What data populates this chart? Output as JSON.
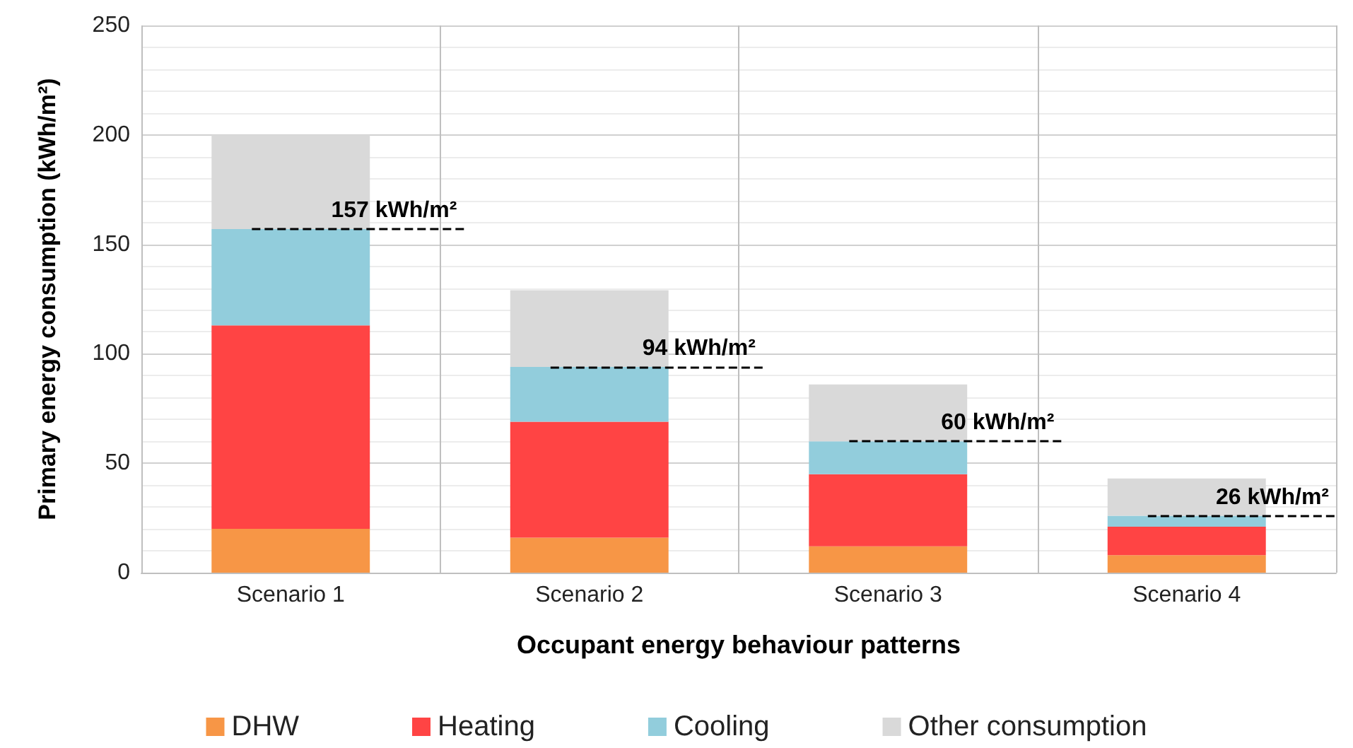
{
  "chart_data": {
    "type": "bar",
    "stacked": true,
    "xlabel": "Occupant energy behaviour patterns",
    "ylabel": "Primary energy consumption (kWh/m²)",
    "categories": [
      "Scenario 1",
      "Scenario 2",
      "Scenario 3",
      "Scenario 4"
    ],
    "series": [
      {
        "name": "DHW",
        "color": "#f79646",
        "values": [
          20,
          16,
          12,
          8
        ]
      },
      {
        "name": "Heating",
        "color": "#ff4444",
        "values": [
          93,
          53,
          33,
          13
        ]
      },
      {
        "name": "Cooling",
        "color": "#92cddc",
        "values": [
          44,
          25,
          15,
          5
        ]
      },
      {
        "name": "Other consumption",
        "color": "#d9d9d9",
        "values": [
          43,
          35,
          26,
          17
        ]
      }
    ],
    "ylim": [
      0,
      250
    ],
    "yticks": [
      0,
      50,
      100,
      150,
      200,
      250
    ],
    "grid": true,
    "legend": "bottom",
    "ref_lines": [
      {
        "axis": "y",
        "value": 157,
        "label": "157 kWh/m²",
        "line_style": "dashed",
        "color": "#000000"
      },
      {
        "axis": "y",
        "value": 94,
        "label": "94 kWh/m²",
        "line_style": "dashed",
        "color": "#000000"
      },
      {
        "axis": "y",
        "value": 60,
        "label": "60 kWh/m²",
        "line_style": "dashed",
        "color": "#000000"
      },
      {
        "axis": "y",
        "value": 26,
        "label": "26 kWh/m²",
        "line_style": "dashed",
        "color": "#000000"
      }
    ]
  }
}
